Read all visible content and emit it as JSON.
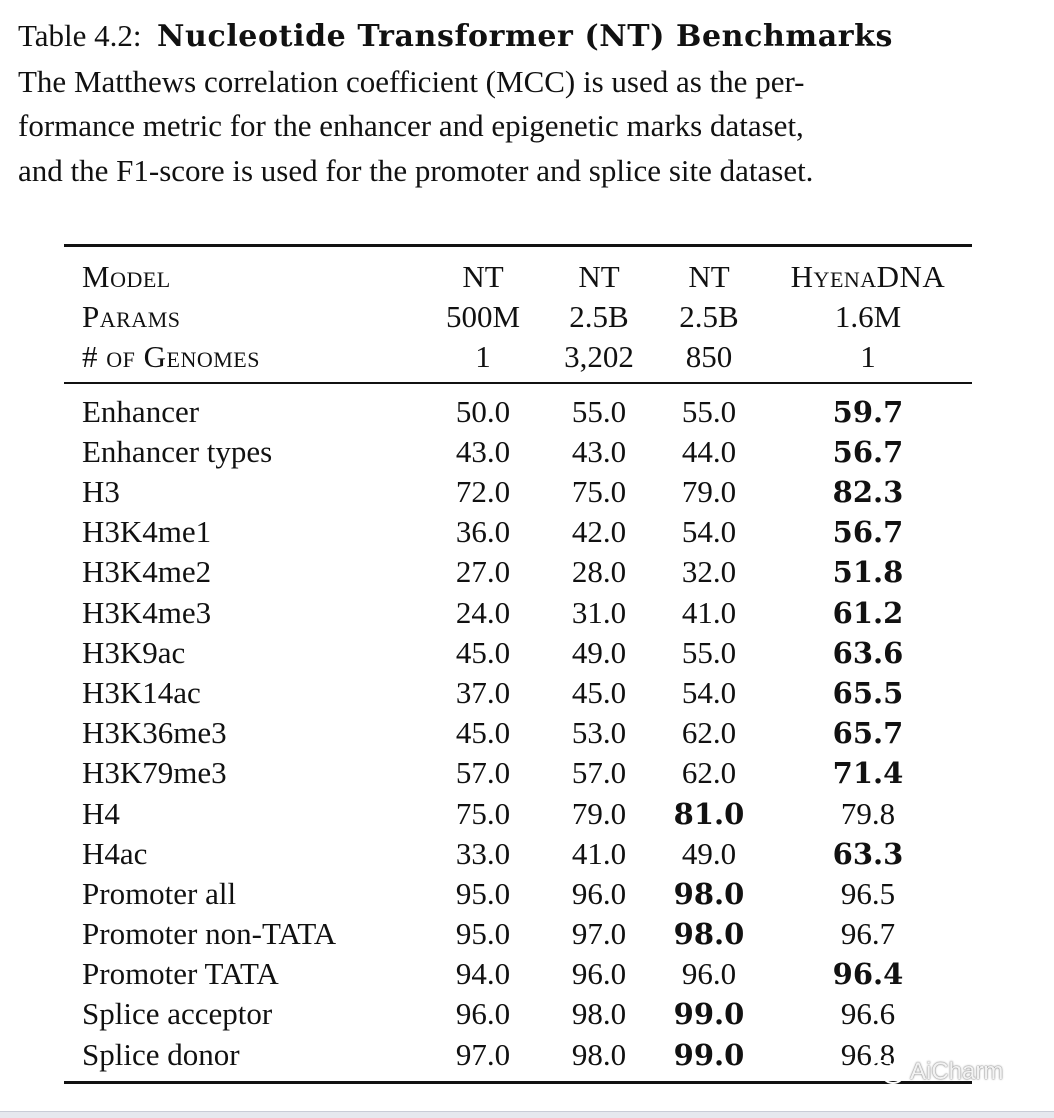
{
  "caption": {
    "label": "Table 4.2:",
    "title": "Nucleotide Transformer (NT) Benchmarks",
    "lines": [
      "The Matthews correlation coefficient (MCC) is used as the per-",
      "formance metric for the enhancer and epigenetic marks dataset,",
      "and the F1-score is used for the promoter and splice site dataset."
    ]
  },
  "header_rows": [
    {
      "label": "Model",
      "cols": [
        "NT",
        "NT",
        "NT",
        "HyenaDNA"
      ]
    },
    {
      "label": "Params",
      "cols": [
        "500M",
        "2.5B",
        "2.5B",
        "1.6M"
      ]
    },
    {
      "label": "# of Genomes",
      "cols": [
        "1",
        "3,202",
        "850",
        "1"
      ]
    }
  ],
  "rows": [
    {
      "name": "Enhancer",
      "vals": [
        "50.0",
        "55.0",
        "55.0",
        "59.7"
      ],
      "best": 3
    },
    {
      "name": "Enhancer types",
      "vals": [
        "43.0",
        "43.0",
        "44.0",
        "56.7"
      ],
      "best": 3
    },
    {
      "name": "H3",
      "vals": [
        "72.0",
        "75.0",
        "79.0",
        "82.3"
      ],
      "best": 3
    },
    {
      "name": "H3K4me1",
      "vals": [
        "36.0",
        "42.0",
        "54.0",
        "56.7"
      ],
      "best": 3
    },
    {
      "name": "H3K4me2",
      "vals": [
        "27.0",
        "28.0",
        "32.0",
        "51.8"
      ],
      "best": 3
    },
    {
      "name": "H3K4me3",
      "vals": [
        "24.0",
        "31.0",
        "41.0",
        "61.2"
      ],
      "best": 3
    },
    {
      "name": "H3K9ac",
      "vals": [
        "45.0",
        "49.0",
        "55.0",
        "63.6"
      ],
      "best": 3
    },
    {
      "name": "H3K14ac",
      "vals": [
        "37.0",
        "45.0",
        "54.0",
        "65.5"
      ],
      "best": 3
    },
    {
      "name": "H3K36me3",
      "vals": [
        "45.0",
        "53.0",
        "62.0",
        "65.7"
      ],
      "best": 3
    },
    {
      "name": "H3K79me3",
      "vals": [
        "57.0",
        "57.0",
        "62.0",
        "71.4"
      ],
      "best": 3
    },
    {
      "name": "H4",
      "vals": [
        "75.0",
        "79.0",
        "81.0",
        "79.8"
      ],
      "best": 2
    },
    {
      "name": "H4ac",
      "vals": [
        "33.0",
        "41.0",
        "49.0",
        "63.3"
      ],
      "best": 3
    },
    {
      "name": "Promoter all",
      "vals": [
        "95.0",
        "96.0",
        "98.0",
        "96.5"
      ],
      "best": 2
    },
    {
      "name": "Promoter non-TATA",
      "vals": [
        "95.0",
        "97.0",
        "98.0",
        "96.7"
      ],
      "best": 2
    },
    {
      "name": "Promoter TATA",
      "vals": [
        "94.0",
        "96.0",
        "96.0",
        "96.4"
      ],
      "best": 3
    },
    {
      "name": "Splice acceptor",
      "vals": [
        "96.0",
        "98.0",
        "99.0",
        "96.6"
      ],
      "best": 2
    },
    {
      "name": "Splice donor",
      "vals": [
        "97.0",
        "98.0",
        "99.0",
        "96.8"
      ],
      "best": 2
    }
  ],
  "watermark": {
    "text": "AiCharm",
    "icon": "wechat-icon"
  }
}
